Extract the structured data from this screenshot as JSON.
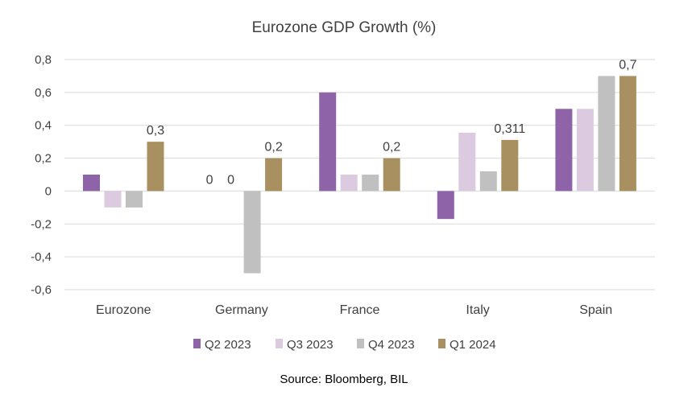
{
  "chart_data": {
    "type": "bar",
    "title": "Eurozone GDP Growth (%)",
    "xlabel": "",
    "ylabel": "",
    "categories": [
      "Eurozone",
      "Germany",
      "France",
      "Italy",
      "Spain"
    ],
    "series": [
      {
        "name": "Q2 2023",
        "color": "#8f63a8",
        "values": [
          0.1,
          0,
          0.6,
          -0.17,
          0.5
        ]
      },
      {
        "name": "Q3 2023",
        "color": "#dccbe0",
        "values": [
          -0.1,
          0,
          0.1,
          0.355,
          0.5
        ]
      },
      {
        "name": "Q4 2023",
        "color": "#c0c0c0",
        "values": [
          -0.1,
          -0.5,
          0.1,
          0.12,
          0.7
        ]
      },
      {
        "name": "Q1 2024",
        "color": "#a89060",
        "values": [
          0.3,
          0.2,
          0.2,
          0.311,
          0.7
        ]
      }
    ],
    "ylim": [
      -0.6,
      0.8
    ],
    "yticks": [
      -0.6,
      -0.4,
      -0.2,
      0,
      0.2,
      0.4,
      0.6,
      0.8
    ],
    "ytick_labels": [
      "-0,6",
      "-0,4",
      "-0,2",
      "0",
      "0,2",
      "0,4",
      "0,6",
      "0,8"
    ],
    "grid": true,
    "legend_position": "bottom",
    "data_labels": [
      {
        "category": "Eurozone",
        "series": "Q1 2024",
        "text": "0,3"
      },
      {
        "category": "Germany",
        "series": "Q2 2023",
        "text": "0"
      },
      {
        "category": "Germany",
        "series": "Q3 2023",
        "text": "0"
      },
      {
        "category": "Germany",
        "series": "Q1 2024",
        "text": "0,2"
      },
      {
        "category": "France",
        "series": "Q1 2024",
        "text": "0,2"
      },
      {
        "category": "Italy",
        "series": "Q1 2024",
        "text": "0,311"
      },
      {
        "category": "Spain",
        "series": "Q1 2024",
        "text": "0,7"
      }
    ],
    "source": "Source: Bloomberg, BIL"
  }
}
